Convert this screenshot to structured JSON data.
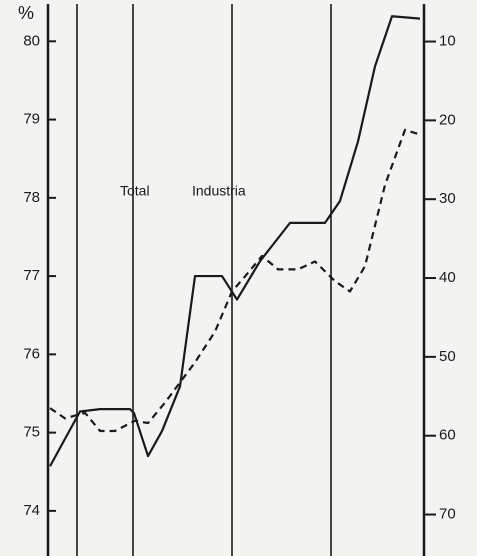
{
  "chart_data": {
    "type": "line",
    "y_label": "%",
    "xlim": [
      0,
      376
    ],
    "xticks": [
      29,
      85,
      184,
      283
    ],
    "ylim": [
      73.5,
      80.4
    ],
    "yticks": [
      74,
      75,
      76,
      77,
      78,
      79,
      80
    ],
    "y2lim": [
      74.5,
      6
    ],
    "y2ticks": [
      10,
      20,
      30,
      40,
      50,
      60,
      70
    ],
    "grid": true,
    "series": [
      {
        "name": "Total",
        "color": "#1a1a1a",
        "dash": "solid",
        "x": [
          2,
          32,
          52,
          82,
          86,
          100,
          114,
          132,
          147,
          174,
          189,
          212,
          242,
          277,
          292,
          310,
          327,
          344,
          372
        ],
        "values": [
          74.57,
          75.27,
          75.3,
          75.3,
          75.25,
          74.7,
          75.02,
          75.59,
          77.0,
          77.0,
          76.7,
          77.19,
          77.68,
          77.68,
          77.96,
          78.72,
          79.68,
          80.32,
          80.29
        ]
      },
      {
        "name": "Industria",
        "color": "#1a1a1a",
        "dash": "dashed",
        "axis": "y2",
        "x": [
          2,
          17,
          37,
          52,
          67,
          87,
          100,
          117,
          147,
          167,
          184,
          197,
          214,
          230,
          250,
          267,
          287,
          302,
          317,
          337,
          357,
          372
        ],
        "values": [
          56.5,
          57.8,
          57.1,
          59.4,
          59.4,
          58.1,
          58.4,
          55.8,
          50.7,
          46.8,
          41.7,
          39.8,
          37.2,
          38.9,
          38.9,
          37.9,
          40.4,
          41.7,
          38.5,
          28.2,
          21.2,
          21.8
        ]
      }
    ]
  }
}
